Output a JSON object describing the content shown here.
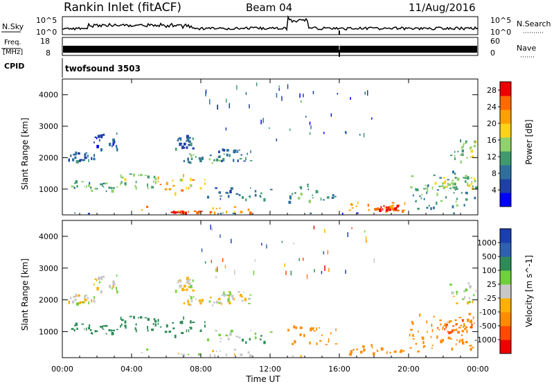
{
  "header": {
    "radar": "Rankin Inlet (fitACF)",
    "beam": "Beam 04",
    "date": "11/Aug/2016"
  },
  "top_panel": {
    "nsky_label": "N.Sky",
    "nsky_ticks": [
      "10^5",
      "10^0"
    ],
    "nsearch_label": "N.Search",
    "nsearch_ticks": [
      "10^5",
      "10^0"
    ],
    "freq_label_1": "Freq.",
    "freq_label_2": "[MHz]",
    "freq_ticks": [
      "18",
      "8"
    ],
    "nave_label": "Nave",
    "nave_ticks": [
      "60",
      "0"
    ],
    "cpid_label": "CPID",
    "cpid_value": "twofsound 3503"
  },
  "colors": {
    "power_scale": [
      "#0000ff",
      "#1e3fa8",
      "#2e6f9e",
      "#3f9a6e",
      "#8fd16a",
      "#ffd21a",
      "#ffa000",
      "#ff6a00",
      "#ee0000"
    ],
    "velocity_scale": [
      "#ee0000",
      "#ff4a00",
      "#ff8c00",
      "#ffb000",
      "#c8c8c8",
      "#6ed03a",
      "#2e8b57",
      "#2f5fb0",
      "#1a3fb0"
    ]
  },
  "chart_data": [
    {
      "type": "heatmap",
      "title": "",
      "xlabel": "Time UT",
      "ylabel": "Slant Range [km]",
      "x_ticks": [
        "00:00",
        "04:00",
        "08:00",
        "12:00",
        "16:00",
        "20:00",
        "00:00"
      ],
      "xlim_hours": [
        0,
        24
      ],
      "y_ticks": [
        "1000",
        "2000",
        "3000",
        "4000"
      ],
      "ylim": [
        180,
        4500
      ],
      "colorbar_label": "Power [dB]",
      "colorbar_ticks": [
        "4",
        "8",
        "12",
        "16",
        "20",
        "24",
        "28"
      ],
      "clim": [
        0,
        30
      ],
      "regions": [
        {
          "t": [
            0.3,
            1.8
          ],
          "r": [
            1900,
            2200
          ],
          "value": 8
        },
        {
          "t": [
            1.8,
            3.2
          ],
          "r": [
            2300,
            2800
          ],
          "value": 6
        },
        {
          "t": [
            0.5,
            3.0
          ],
          "r": [
            950,
            1300
          ],
          "value": 12
        },
        {
          "t": [
            3.0,
            5.5
          ],
          "r": [
            1050,
            1500
          ],
          "value": 14
        },
        {
          "t": [
            5.5,
            8.2
          ],
          "r": [
            900,
            1500
          ],
          "value": 20
        },
        {
          "t": [
            6.8,
            9.5
          ],
          "r": [
            1850,
            2150
          ],
          "value": 12
        },
        {
          "t": [
            6.5,
            8.0
          ],
          "r": [
            2300,
            2750
          ],
          "value": 8
        },
        {
          "t": [
            8.2,
            12.5
          ],
          "r": [
            700,
            1100
          ],
          "value": 10
        },
        {
          "t": [
            4.5,
            11.5
          ],
          "r": [
            190,
            480
          ],
          "value": 22
        },
        {
          "t": [
            6.0,
            8.8
          ],
          "r": [
            190,
            330
          ],
          "value": 28
        },
        {
          "t": [
            9.0,
            11.0
          ],
          "r": [
            1900,
            2300
          ],
          "value": 8
        },
        {
          "t": [
            13.0,
            16.0
          ],
          "r": [
            600,
            1200
          ],
          "value": 10
        },
        {
          "t": [
            16.5,
            20.0
          ],
          "r": [
            320,
            620
          ],
          "value": 22
        },
        {
          "t": [
            18.0,
            19.5
          ],
          "r": [
            320,
            500
          ],
          "value": 28
        },
        {
          "t": [
            20.0,
            24.0
          ],
          "r": [
            400,
            1600
          ],
          "value": 12
        },
        {
          "t": [
            22.3,
            24.0
          ],
          "r": [
            1900,
            2600
          ],
          "value": 14
        },
        {
          "t": [
            21.5,
            24.0
          ],
          "r": [
            1000,
            1400
          ],
          "value": 16
        },
        {
          "t": [
            0.0,
            24.0
          ],
          "r": [
            190,
            260
          ],
          "value": 6
        }
      ]
    },
    {
      "type": "heatmap",
      "title": "",
      "xlabel": "Time UT",
      "ylabel": "Slant Range [km]",
      "x_ticks": [
        "00:00",
        "04:00",
        "08:00",
        "12:00",
        "16:00",
        "20:00",
        "00:00"
      ],
      "xlim_hours": [
        0,
        24
      ],
      "y_ticks": [
        "1000",
        "2000",
        "3000",
        "4000"
      ],
      "ylim": [
        180,
        4500
      ],
      "colorbar_label": "Velocity [m s^-1]",
      "colorbar_ticks": [
        "1000",
        "500",
        "100",
        "25",
        "-25",
        "-100",
        "-500",
        "-1000"
      ],
      "clim": [
        -1200,
        1200
      ],
      "regions": [
        {
          "t": [
            0.3,
            1.8
          ],
          "r": [
            1900,
            2200
          ],
          "value": 0
        },
        {
          "t": [
            1.8,
            3.2
          ],
          "r": [
            2300,
            2800
          ],
          "value": 0
        },
        {
          "t": [
            0.5,
            3.0
          ],
          "r": [
            950,
            1300
          ],
          "value": 200
        },
        {
          "t": [
            3.0,
            5.5
          ],
          "r": [
            1050,
            1500
          ],
          "value": 150
        },
        {
          "t": [
            5.5,
            8.2
          ],
          "r": [
            900,
            1500
          ],
          "value": 120
        },
        {
          "t": [
            6.8,
            9.5
          ],
          "r": [
            1850,
            2150
          ],
          "value": 0
        },
        {
          "t": [
            6.5,
            8.0
          ],
          "r": [
            2300,
            2750
          ],
          "value": 0
        },
        {
          "t": [
            8.2,
            12.5
          ],
          "r": [
            700,
            1100
          ],
          "value": 60
        },
        {
          "t": [
            4.5,
            11.5
          ],
          "r": [
            190,
            480
          ],
          "value": 0
        },
        {
          "t": [
            9.0,
            11.0
          ],
          "r": [
            1900,
            2300
          ],
          "value": 0
        },
        {
          "t": [
            13.0,
            16.0
          ],
          "r": [
            600,
            1200
          ],
          "value": -150
        },
        {
          "t": [
            16.5,
            20.0
          ],
          "r": [
            320,
            620
          ],
          "value": -250
        },
        {
          "t": [
            20.0,
            24.0
          ],
          "r": [
            400,
            1600
          ],
          "value": -200
        },
        {
          "t": [
            22.3,
            24.0
          ],
          "r": [
            1900,
            2600
          ],
          "value": 0
        },
        {
          "t": [
            21.5,
            24.0
          ],
          "r": [
            1000,
            1400
          ],
          "value": -300
        },
        {
          "t": [
            0.0,
            24.0
          ],
          "r": [
            190,
            260
          ],
          "value": 0
        }
      ]
    }
  ]
}
